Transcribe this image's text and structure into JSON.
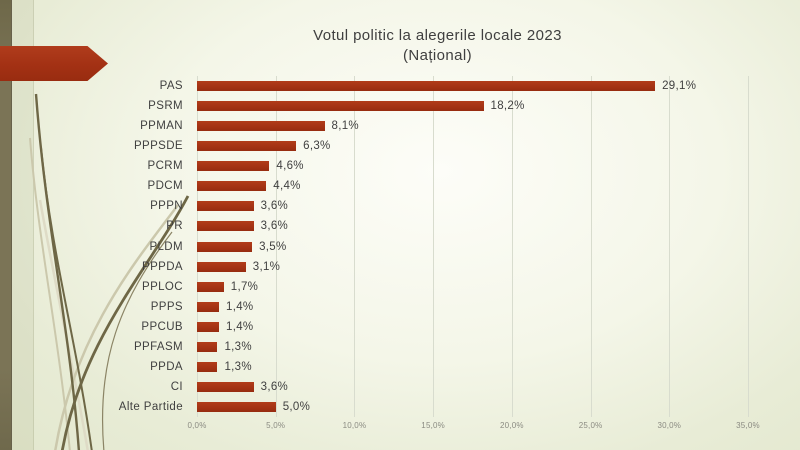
{
  "slide": {
    "kind": "presentation-slide",
    "decorations": {
      "side_stripe_color": "#7b7456",
      "arrow_color": "#a33114",
      "swoosh_dark_color": "#6e6746",
      "swoosh_light_color": "#cbc8ac",
      "background_center": "#fdfdf8",
      "background_edge": "#e2e7cd"
    }
  },
  "chart_data": {
    "type": "bar",
    "orientation": "horizontal",
    "title": "Votul politic la alegerile locale 2023",
    "subtitle": "(Național)",
    "categories": [
      "PAS",
      "PSRM",
      "PPMAN",
      "PPPSDE",
      "PCRM",
      "PDCM",
      "PPPN",
      "PR",
      "PLDM",
      "PPPDA",
      "PPLOC",
      "PPPS",
      "PPCUB",
      "PPFASM",
      "PPDA",
      "CI",
      "Alte Partide"
    ],
    "values": [
      29.1,
      18.2,
      8.1,
      6.3,
      4.6,
      4.4,
      3.6,
      3.6,
      3.5,
      3.1,
      1.7,
      1.4,
      1.4,
      1.3,
      1.3,
      3.6,
      5.0
    ],
    "value_labels": [
      "29,1%",
      "18,2%",
      "8,1%",
      "6,3%",
      "4,6%",
      "4,4%",
      "3,6%",
      "3,6%",
      "3,5%",
      "3,1%",
      "1,7%",
      "1,4%",
      "1,4%",
      "1,3%",
      "1,3%",
      "3,6%",
      "5,0%"
    ],
    "xlabel": "",
    "ylabel": "",
    "x_axis": {
      "min": 0,
      "max": 35,
      "step": 5,
      "tick_labels": [
        "0,0%",
        "5,0%",
        "10,0%",
        "15,0%",
        "20,0%",
        "25,0%",
        "30,0%",
        "35,0%"
      ]
    },
    "grid": true,
    "legend_position": "none",
    "bar_color": "#a33213",
    "label_color": "#3f3f3f",
    "tick_color": "#8b8b82"
  }
}
